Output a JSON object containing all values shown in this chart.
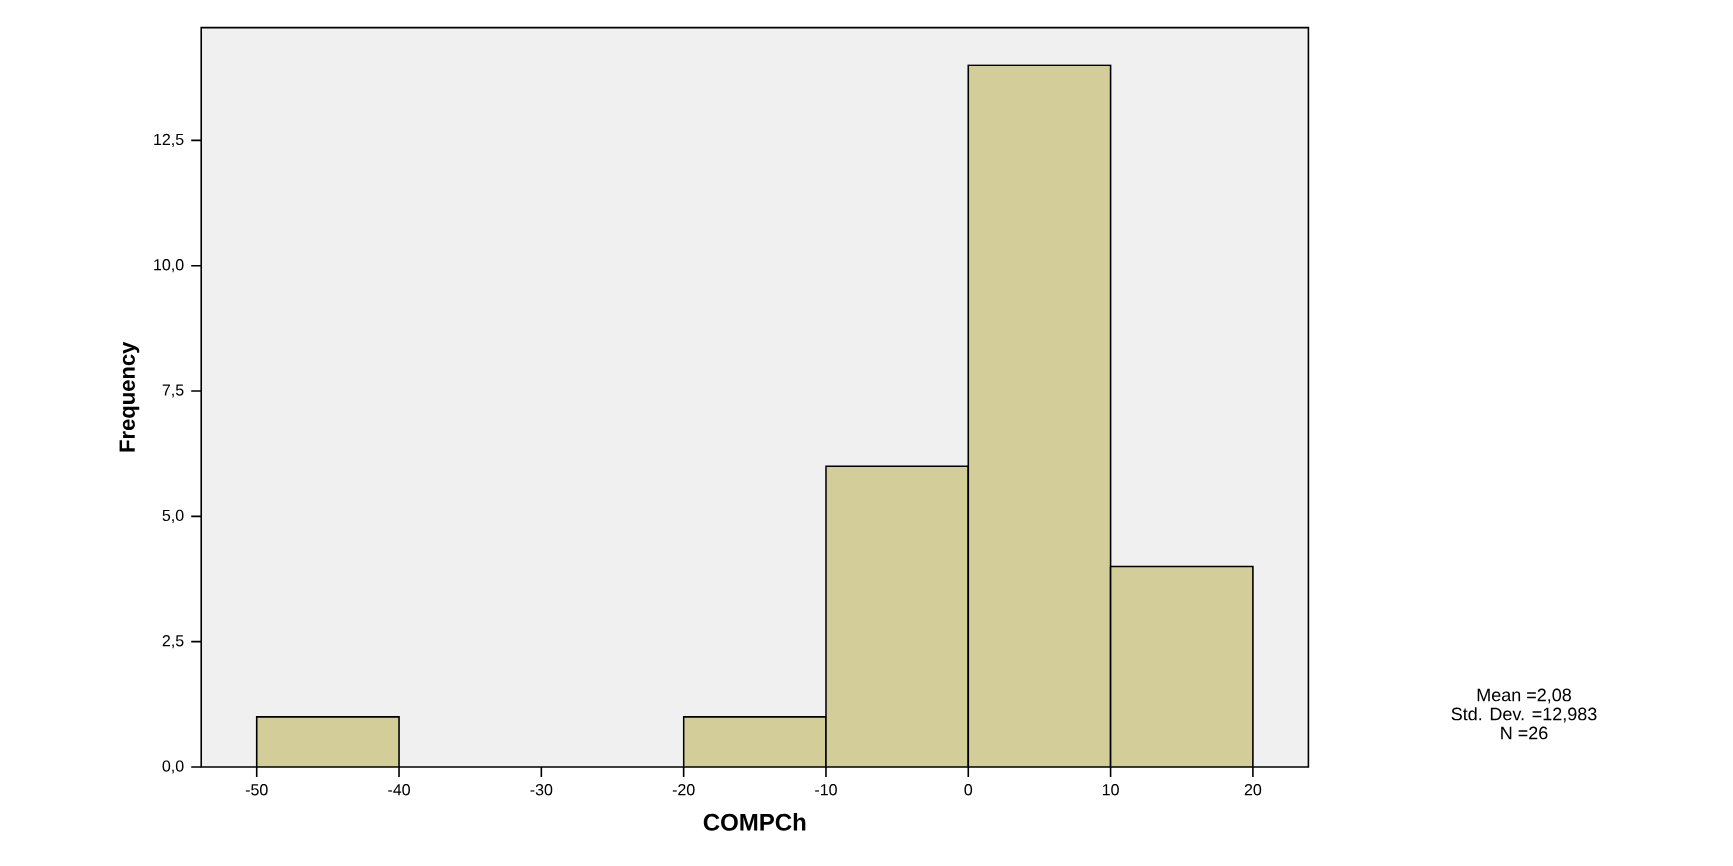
{
  "chart_data": {
    "type": "histogram",
    "xlabel": "COMPCh",
    "ylabel": "Frequency",
    "bins": [
      -50,
      -40,
      -30,
      -20,
      -10,
      0,
      10,
      20
    ],
    "values": [
      1,
      0,
      0,
      1,
      6,
      14,
      4
    ],
    "color": "#d3ce99",
    "xlim": [
      -53.9,
      23.9
    ],
    "ylim": [
      0,
      14.75
    ],
    "xticks": [
      -50,
      -40,
      -30,
      -20,
      -10,
      0,
      10,
      20
    ],
    "yticks": [
      {
        "value": 0,
        "label": "0,0"
      },
      {
        "value": 2.5,
        "label": "2,5"
      },
      {
        "value": 5,
        "label": "5,0"
      },
      {
        "value": 7.5,
        "label": "7,5"
      },
      {
        "value": 10,
        "label": "10,0"
      },
      {
        "value": 12.5,
        "label": "12,5"
      }
    ],
    "grid": false,
    "annotations": [
      "Mean =2,08",
      "Std. Dev. =12,983",
      "N =26"
    ]
  }
}
